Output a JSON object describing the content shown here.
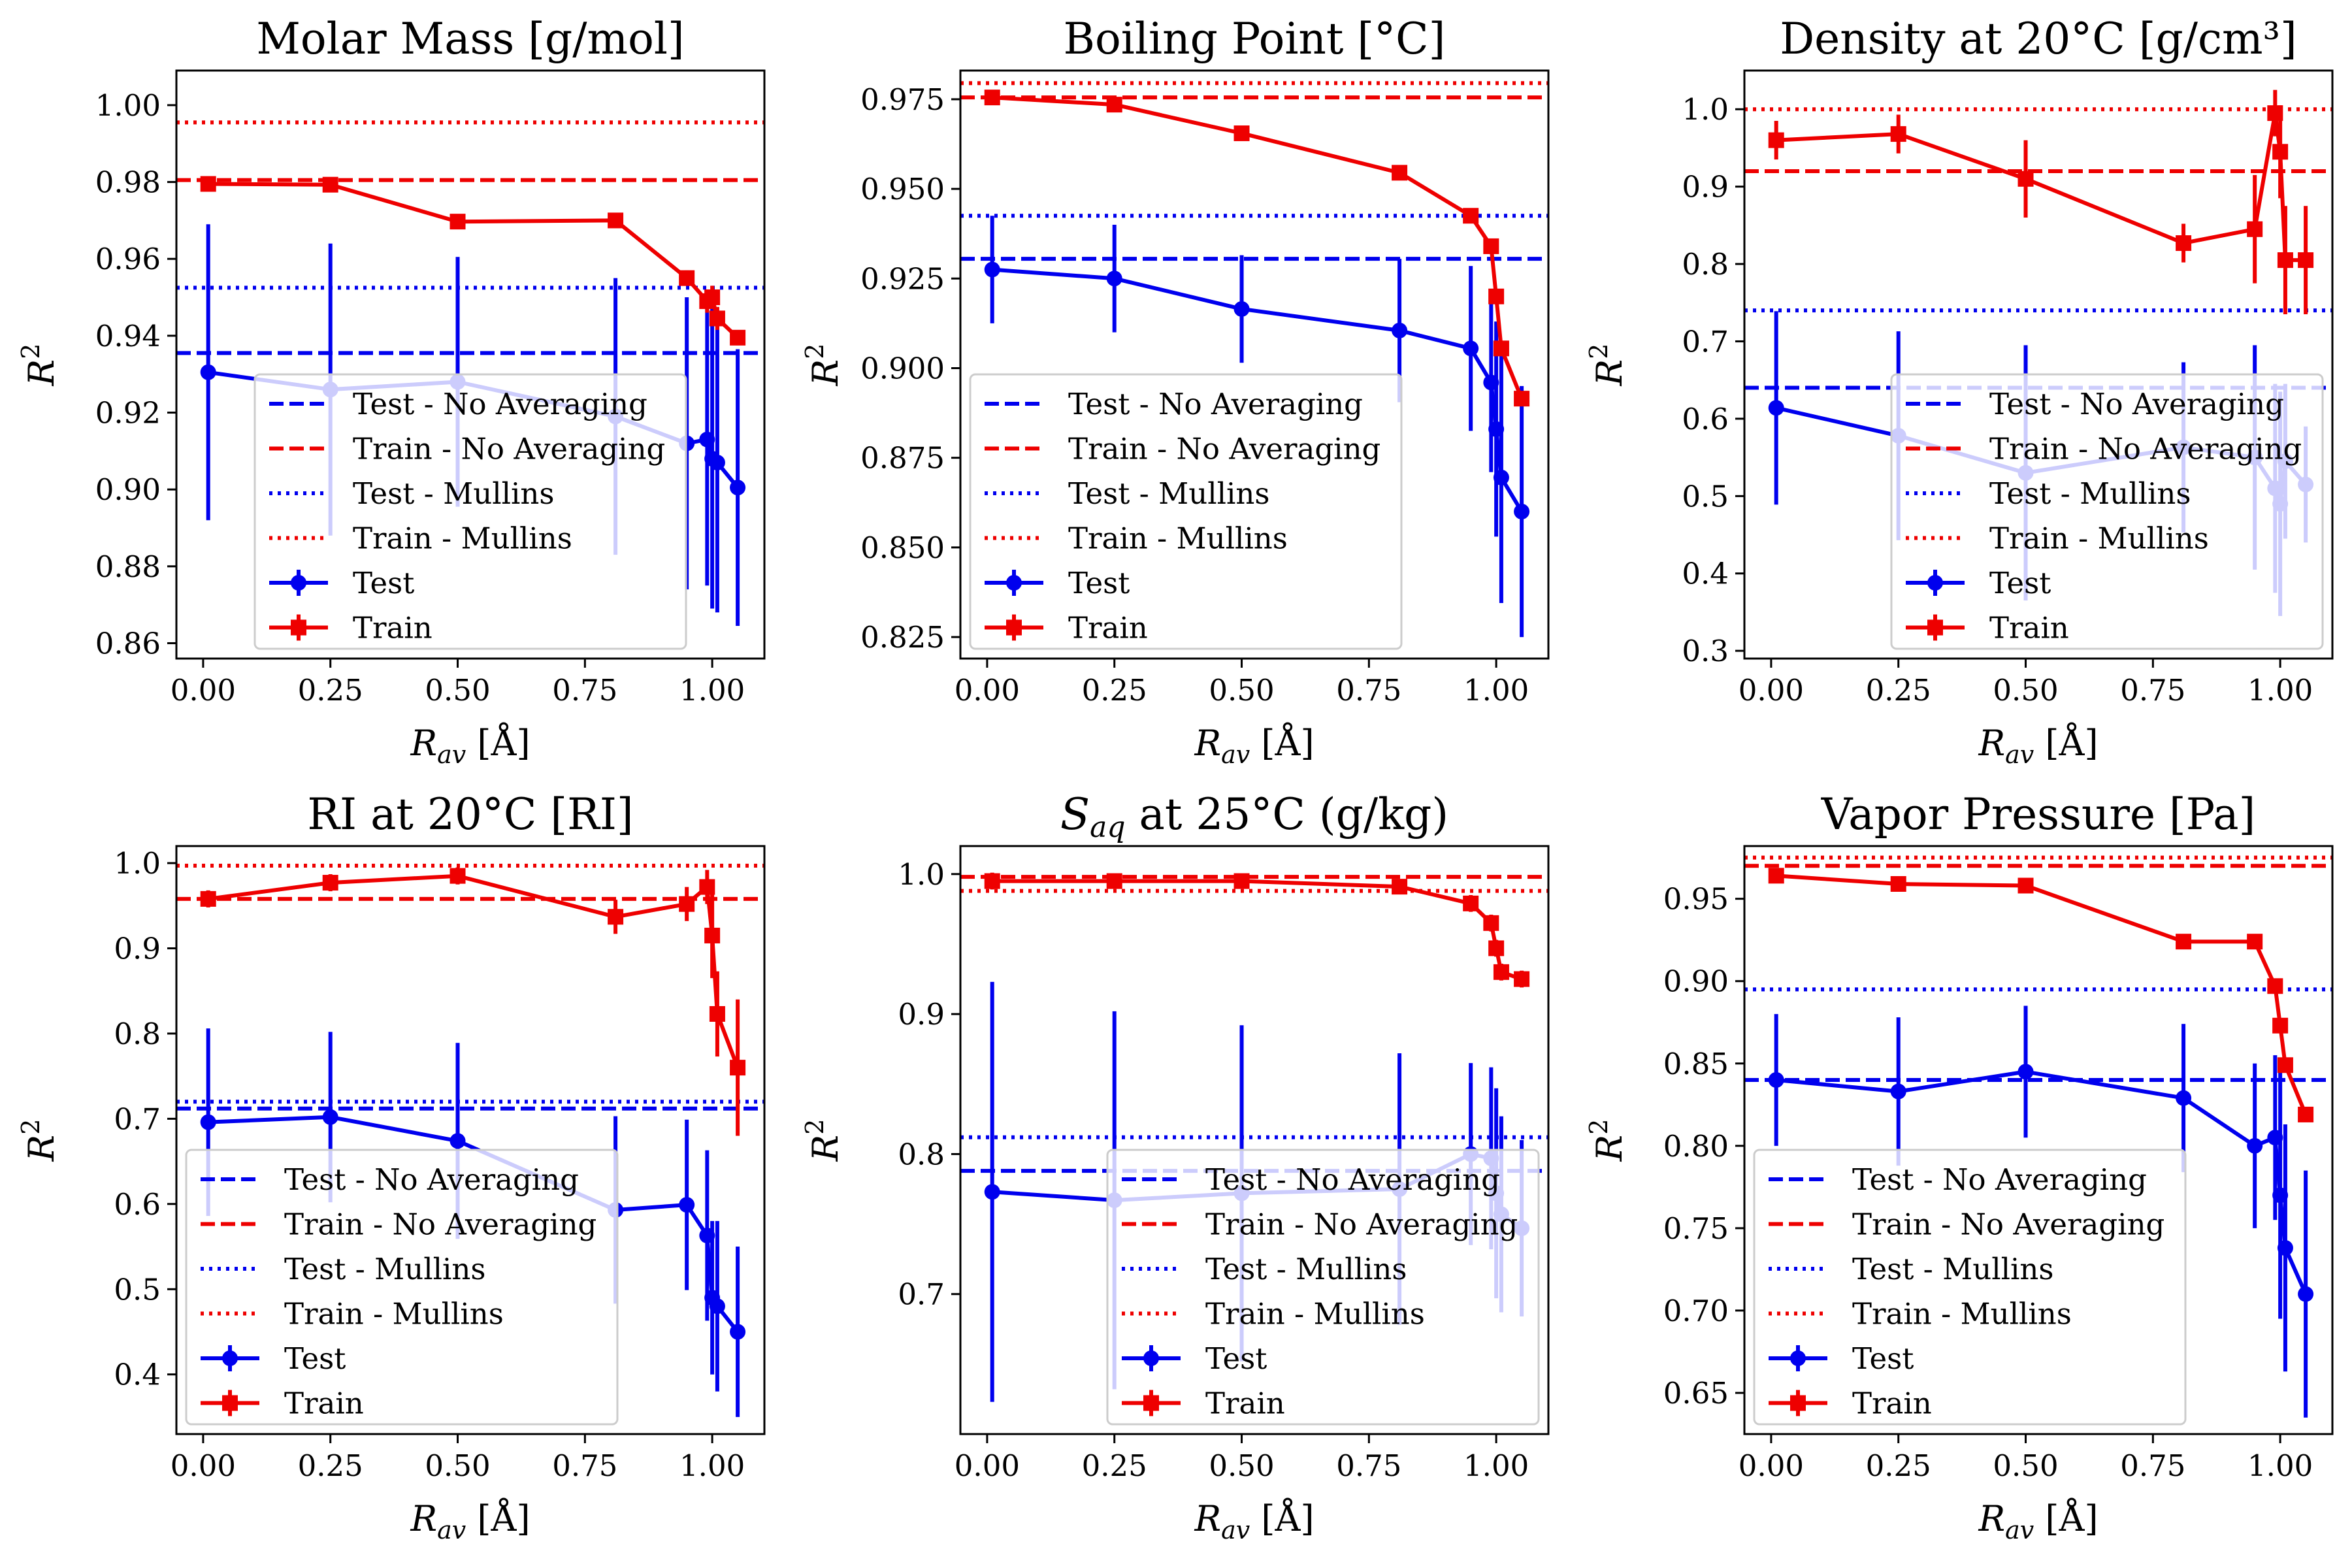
{
  "figure": {
    "x_label_main": "R",
    "x_label_sub": "av",
    "x_label_unit": " [Å]",
    "y_label_main": "R",
    "y_label_sup": "2",
    "colors": {
      "test": "#0000ee",
      "train": "#ee0000"
    },
    "legend_labels": {
      "test_no_avg": "Test - No Averaging",
      "train_no_avg": "Train - No Averaging",
      "test_mullins": "Test - Mullins",
      "train_mullins": "Train - Mullins",
      "test": "Test",
      "train": "Train"
    }
  },
  "chart_data": [
    {
      "type": "line",
      "title": "Molar Mass [g/mol]",
      "xlim": [
        -0.0525,
        1.1025
      ],
      "ylim": [
        0.856,
        1.009
      ],
      "xticks": [
        0.0,
        0.25,
        0.5,
        0.75,
        1.0
      ],
      "xtick_labels": [
        "0.00",
        "0.25",
        "0.50",
        "0.75",
        "1.00"
      ],
      "yticks": [
        0.86,
        0.88,
        0.9,
        0.92,
        0.94,
        0.96,
        0.98,
        1.0
      ],
      "ytick_labels": [
        "0.86",
        "0.88",
        "0.90",
        "0.92",
        "0.94",
        "0.96",
        "0.98",
        "1.00"
      ],
      "x": [
        0.01,
        0.25,
        0.5,
        0.81,
        0.95,
        0.99,
        1.0,
        1.01,
        1.05
      ],
      "test": [
        0.9305,
        0.926,
        0.928,
        0.919,
        0.912,
        0.913,
        0.908,
        0.907,
        0.9005
      ],
      "test_err": [
        0.0385,
        0.038,
        0.0325,
        0.036,
        0.038,
        0.038,
        0.039,
        0.039,
        0.036
      ],
      "train": [
        0.9795,
        0.9793,
        0.9697,
        0.97,
        0.955,
        0.949,
        0.95,
        0.9445,
        0.9395
      ],
      "train_err": [
        0.002,
        0.001,
        0.001,
        0.001,
        0.002,
        0.003,
        0.003,
        0.003,
        0.002
      ],
      "ref": {
        "test_no_avg": 0.9355,
        "train_no_avg": 0.9805,
        "test_mullins": 0.9525,
        "train_mullins": 0.9955
      },
      "legend_position": "lower-center"
    },
    {
      "type": "line",
      "title": "Boiling Point [°C]",
      "xlim": [
        -0.0525,
        1.1025
      ],
      "ylim": [
        0.819,
        0.983
      ],
      "xticks": [
        0.0,
        0.25,
        0.5,
        0.75,
        1.0
      ],
      "xtick_labels": [
        "0.00",
        "0.25",
        "0.50",
        "0.75",
        "1.00"
      ],
      "yticks": [
        0.825,
        0.85,
        0.875,
        0.9,
        0.925,
        0.95,
        0.975
      ],
      "ytick_labels": [
        "0.825",
        "0.850",
        "0.875",
        "0.900",
        "0.925",
        "0.950",
        "0.975"
      ],
      "x": [
        0.01,
        0.25,
        0.5,
        0.81,
        0.95,
        0.99,
        1.0,
        1.01,
        1.05
      ],
      "test": [
        0.9275,
        0.925,
        0.9165,
        0.9105,
        0.9055,
        0.896,
        0.883,
        0.8695,
        0.86
      ],
      "test_err": [
        0.015,
        0.015,
        0.015,
        0.02,
        0.023,
        0.025,
        0.03,
        0.035,
        0.035
      ],
      "train": [
        0.9755,
        0.9735,
        0.9655,
        0.9545,
        0.9425,
        0.934,
        0.92,
        0.9055,
        0.8915
      ],
      "train_err": [
        0.002,
        0.002,
        0.002,
        0.002,
        0.002,
        0.002,
        0.002,
        0.002,
        0.002
      ],
      "ref": {
        "test_no_avg": 0.9305,
        "train_no_avg": 0.9755,
        "test_mullins": 0.9425,
        "train_mullins": 0.9795
      },
      "legend_position": "lower-left"
    },
    {
      "type": "line",
      "title": "Density at 20°C [g/cm³]",
      "xlim": [
        -0.0525,
        1.1025
      ],
      "ylim": [
        0.29,
        1.05
      ],
      "xticks": [
        0.0,
        0.25,
        0.5,
        0.75,
        1.0
      ],
      "xtick_labels": [
        "0.00",
        "0.25",
        "0.50",
        "0.75",
        "1.00"
      ],
      "yticks": [
        0.3,
        0.4,
        0.5,
        0.6,
        0.7,
        0.8,
        0.9,
        1.0
      ],
      "ytick_labels": [
        "0.3",
        "0.4",
        "0.5",
        "0.6",
        "0.7",
        "0.8",
        "0.9",
        "1.0"
      ],
      "x": [
        0.01,
        0.25,
        0.5,
        0.81,
        0.95,
        0.99,
        1.0,
        1.01,
        1.05
      ],
      "test": [
        0.614,
        0.578,
        0.53,
        0.563,
        0.55,
        0.51,
        0.49,
        0.545,
        0.515
      ],
      "test_err": [
        0.125,
        0.135,
        0.165,
        0.11,
        0.145,
        0.135,
        0.145,
        0.1,
        0.075
      ],
      "train": [
        0.96,
        0.968,
        0.91,
        0.827,
        0.845,
        0.995,
        0.945,
        0.805,
        0.805
      ],
      "train_err": [
        0.025,
        0.025,
        0.05,
        0.025,
        0.07,
        0.03,
        0.06,
        0.07,
        0.07
      ],
      "ref": {
        "test_no_avg": 0.64,
        "train_no_avg": 0.92,
        "test_mullins": 0.74,
        "train_mullins": 1.0
      },
      "legend_position": "lower-right"
    },
    {
      "type": "line",
      "title": "RI at 20°C [RI]",
      "xlim": [
        -0.0525,
        1.1025
      ],
      "ylim": [
        0.33,
        1.02
      ],
      "xticks": [
        0.0,
        0.25,
        0.5,
        0.75,
        1.0
      ],
      "xtick_labels": [
        "0.00",
        "0.25",
        "0.50",
        "0.75",
        "1.00"
      ],
      "yticks": [
        0.4,
        0.5,
        0.6,
        0.7,
        0.8,
        0.9,
        1.0
      ],
      "ytick_labels": [
        "0.4",
        "0.5",
        "0.6",
        "0.7",
        "0.8",
        "0.9",
        "1.0"
      ],
      "x": [
        0.01,
        0.25,
        0.5,
        0.81,
        0.95,
        0.99,
        1.0,
        1.01,
        1.05
      ],
      "test": [
        0.696,
        0.702,
        0.674,
        0.593,
        0.599,
        0.563,
        0.49,
        0.48,
        0.45
      ],
      "test_err": [
        0.11,
        0.1,
        0.115,
        0.11,
        0.1,
        0.1,
        0.09,
        0.1,
        0.1
      ],
      "train": [
        0.958,
        0.977,
        0.985,
        0.937,
        0.952,
        0.972,
        0.915,
        0.823,
        0.76
      ],
      "train_err": [
        0.01,
        0.01,
        0.01,
        0.02,
        0.02,
        0.02,
        0.05,
        0.05,
        0.08
      ],
      "ref": {
        "test_no_avg": 0.712,
        "train_no_avg": 0.958,
        "test_mullins": 0.72,
        "train_mullins": 0.997
      },
      "legend_position": "lower-left"
    },
    {
      "type": "line",
      "title_main": "S",
      "title_sub": "aq",
      "title_rest": " at 25°C (g/kg)",
      "xlim": [
        -0.0525,
        1.1025
      ],
      "ylim": [
        0.6,
        1.02
      ],
      "xticks": [
        0.0,
        0.25,
        0.5,
        0.75,
        1.0
      ],
      "xtick_labels": [
        "0.00",
        "0.25",
        "0.50",
        "0.75",
        "1.00"
      ],
      "yticks": [
        0.7,
        0.8,
        0.9,
        1.0
      ],
      "ytick_labels": [
        "0.7",
        "0.8",
        "0.9",
        "1.0"
      ],
      "x": [
        0.01,
        0.25,
        0.5,
        0.81,
        0.95,
        0.99,
        1.0,
        1.01,
        1.05
      ],
      "test": [
        0.773,
        0.767,
        0.772,
        0.775,
        0.8,
        0.797,
        0.772,
        0.757,
        0.747
      ],
      "test_err": [
        0.15,
        0.135,
        0.12,
        0.097,
        0.065,
        0.065,
        0.075,
        0.07,
        0.063
      ],
      "train": [
        0.995,
        0.995,
        0.995,
        0.991,
        0.979,
        0.965,
        0.947,
        0.93,
        0.925
      ],
      "train_err": [
        0.006,
        0.004,
        0.004,
        0.004,
        0.006,
        0.006,
        0.006,
        0.006,
        0.006
      ],
      "ref": {
        "test_no_avg": 0.788,
        "train_no_avg": 0.998,
        "test_mullins": 0.812,
        "train_mullins": 0.988
      },
      "legend_position": "lower-right"
    },
    {
      "type": "line",
      "title": "Vapor Pressure [Pa]",
      "xlim": [
        -0.0525,
        1.1025
      ],
      "ylim": [
        0.625,
        0.982
      ],
      "xticks": [
        0.0,
        0.25,
        0.5,
        0.75,
        1.0
      ],
      "xtick_labels": [
        "0.00",
        "0.25",
        "0.50",
        "0.75",
        "1.00"
      ],
      "yticks": [
        0.65,
        0.7,
        0.75,
        0.8,
        0.85,
        0.9,
        0.95
      ],
      "ytick_labels": [
        "0.65",
        "0.70",
        "0.75",
        "0.80",
        "0.85",
        "0.90",
        "0.95"
      ],
      "x": [
        0.01,
        0.25,
        0.5,
        0.81,
        0.95,
        0.99,
        1.0,
        1.01,
        1.05
      ],
      "test": [
        0.84,
        0.833,
        0.845,
        0.829,
        0.8,
        0.805,
        0.77,
        0.738,
        0.71
      ],
      "test_err": [
        0.04,
        0.045,
        0.04,
        0.045,
        0.05,
        0.05,
        0.075,
        0.075,
        0.075
      ],
      "train": [
        0.964,
        0.959,
        0.958,
        0.924,
        0.924,
        0.897,
        0.873,
        0.849,
        0.819
      ],
      "train_err": [
        0.004,
        0.003,
        0.003,
        0.004,
        0.004,
        0.004,
        0.004,
        0.004,
        0.004
      ],
      "ref": {
        "test_no_avg": 0.84,
        "train_no_avg": 0.97,
        "test_mullins": 0.895,
        "train_mullins": 0.975
      },
      "legend_position": "lower-left"
    }
  ]
}
